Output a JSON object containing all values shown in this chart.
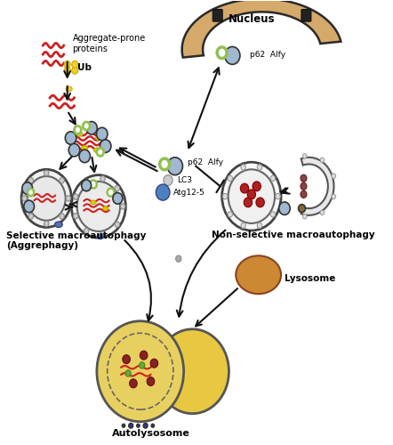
{
  "title": "",
  "background_color": "#ffffff",
  "figsize": [
    4.42,
    5.0
  ],
  "dpi": 100,
  "nucleus_label": "Nucleus",
  "selective_label": "Selective macroautophagy\n(Aggrephagy)",
  "nonselective_label": "Non-selective macroautophagy",
  "lysosome_label": "Lysosome",
  "autolysosome_label": "Autolysosome",
  "aggregate_label": "Aggregate-prone\nproteins",
  "ub_label": "Ub",
  "p62_alfy_label1": "p62  Alfy",
  "p62_alfy_label2": "p62  Alfy",
  "lc3_label": "LC3",
  "atg_label": "Atg12-5",
  "nucleus_color": "#d4a96a",
  "nucleus_edge": "#2a2a2a",
  "lysosome_color": "#cc8833",
  "autolysosome_color1": "#e8d060",
  "autolysosome_color2": "#e8c840",
  "autophagosome_color": "#cccccc",
  "membrane_color": "#888888",
  "p62_color": "#a0b8d0",
  "alfy_color": "#90c050",
  "lc3_color": "#a0b0c8",
  "atg_color": "#5080c0",
  "ub_color": "#f0d030",
  "aggregate_color": "#cc3333",
  "dark_aggregate_color": "#8b0000"
}
